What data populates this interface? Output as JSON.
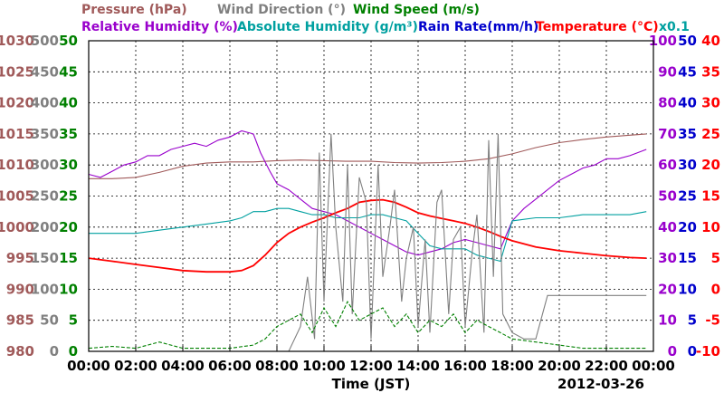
{
  "chart_data": {
    "type": "line",
    "date": "2012-03-26",
    "xlabel": "Time (JST)",
    "x_ticks": [
      "00:00",
      "02:00",
      "04:00",
      "06:00",
      "08:00",
      "10:00",
      "12:00",
      "14:00",
      "16:00",
      "18:00",
      "20:00",
      "22:00",
      "00:00"
    ],
    "x_range_hours": [
      0,
      24
    ],
    "grid": true,
    "legend_row1": [
      {
        "label": "Pressure (hPa)",
        "color": "#a05a5a"
      },
      {
        "label": "Wind Direction (°)",
        "color": "#808080"
      },
      {
        "label": "Wind Speed (m/s)",
        "color": "#008000"
      }
    ],
    "legend_row2": [
      {
        "label": "Relative Humidity (%)",
        "color": "#9900cc"
      },
      {
        "label": "Absolute Humidity (g/m³)",
        "color": "#00a0a0"
      },
      {
        "label": "Rain Rate(mm/h)",
        "color": "#0000cc"
      },
      {
        "label": "Temperature (°C)",
        "color": "#ff0000"
      },
      {
        "label": "x0.1",
        "color": "#00a0a0"
      }
    ],
    "axes": {
      "pressure": {
        "color": "#a05a5a",
        "range": [
          980,
          1030
        ],
        "ticks": [
          "1030",
          "1025",
          "1020",
          "1015",
          "1010",
          "1005",
          "1000",
          "995",
          "990",
          "985",
          "980"
        ]
      },
      "wind_direction": {
        "color": "#808080",
        "range": [
          0,
          500
        ],
        "ticks": [
          "500",
          "450",
          "400",
          "350",
          "300",
          "250",
          "200",
          "150",
          "100",
          "50",
          "0"
        ]
      },
      "wind_speed": {
        "color": "#008000",
        "range": [
          0,
          50
        ],
        "ticks": [
          "50",
          "45",
          "40",
          "35",
          "30",
          "25",
          "20",
          "15",
          "10",
          "5",
          "0"
        ]
      },
      "humidity": {
        "color": "#9900cc",
        "range": [
          0,
          100
        ],
        "ticks": [
          "100",
          "90",
          "80",
          "70",
          "60",
          "50",
          "40",
          "30",
          "20",
          "10",
          "0"
        ]
      },
      "rain_rate": {
        "color": "#0000cc",
        "range": [
          0,
          50
        ],
        "ticks": [
          "50",
          "45",
          "40",
          "35",
          "30",
          "25",
          "20",
          "15",
          "10",
          "5",
          "0"
        ]
      },
      "temperature": {
        "color": "#ff0000",
        "range": [
          -10,
          40
        ],
        "ticks": [
          "40",
          "35",
          "30",
          "25",
          "20",
          "15",
          "10",
          "5",
          "0",
          "-5",
          "-10"
        ]
      }
    },
    "series": [
      {
        "name": "Pressure (hPa)",
        "color": "#a05a5a",
        "axis": "pressure",
        "x": [
          0,
          1,
          2,
          3,
          4,
          5,
          6,
          7,
          8,
          9,
          10,
          11,
          12,
          13,
          14,
          15,
          16,
          17,
          18,
          19,
          20,
          21,
          22,
          23,
          23.7
        ],
        "y": [
          1007.8,
          1007.8,
          1008.0,
          1008.8,
          1009.8,
          1010.3,
          1010.5,
          1010.5,
          1010.7,
          1010.8,
          1010.7,
          1010.6,
          1010.6,
          1010.4,
          1010.3,
          1010.4,
          1010.6,
          1011.0,
          1011.8,
          1012.8,
          1013.6,
          1014.1,
          1014.5,
          1014.8,
          1015.0
        ]
      },
      {
        "name": "Relative Humidity (%)",
        "color": "#9900cc",
        "axis": "humidity",
        "x": [
          0,
          0.5,
          1,
          1.5,
          2,
          2.5,
          3,
          3.5,
          4,
          4.5,
          5,
          5.5,
          6,
          6.5,
          7,
          7.3,
          7.7,
          8,
          8.5,
          9,
          9.5,
          10,
          10.5,
          11,
          11.5,
          12,
          12.5,
          13,
          13.5,
          14,
          14.5,
          15,
          15.5,
          16,
          16.5,
          17,
          17.5,
          18,
          18.5,
          19,
          19.5,
          20,
          20.5,
          21,
          21.5,
          22,
          22.5,
          23,
          23.7
        ],
        "y": [
          57,
          56,
          58,
          60,
          61,
          63,
          63,
          65,
          66,
          67,
          66,
          68,
          69,
          71,
          70,
          64,
          58,
          54,
          52,
          49,
          46,
          45,
          44,
          42,
          40,
          38,
          36,
          34,
          32,
          31,
          32,
          33,
          35,
          36,
          35,
          34,
          33,
          42,
          46,
          49,
          52,
          55,
          57,
          59,
          60,
          62,
          62,
          63,
          65
        ]
      },
      {
        "name": "Absolute Humidity (g/m³)",
        "color": "#00a0a0",
        "axis": "humidity",
        "x": [
          0,
          1,
          2,
          3,
          4,
          5,
          6,
          6.5,
          7,
          7.5,
          8,
          8.5,
          9,
          9.5,
          10,
          10.5,
          11,
          11.5,
          12,
          12.5,
          13,
          13.5,
          14,
          14.5,
          15,
          15.5,
          16,
          16.5,
          17,
          17.5,
          18,
          19,
          20,
          21,
          22,
          23,
          23.7
        ],
        "y": [
          38,
          38,
          38,
          39,
          40,
          41,
          42,
          43,
          45,
          45,
          46,
          46,
          45,
          44,
          44,
          43,
          43,
          43,
          44,
          44,
          43,
          42,
          38,
          34,
          33,
          33,
          33,
          31,
          30,
          29,
          42,
          43,
          43,
          44,
          44,
          44,
          45
        ]
      },
      {
        "name": "Temperature (°C)",
        "color": "#ff0000",
        "axis": "temperature",
        "x": [
          0,
          1,
          2,
          3,
          4,
          5,
          6,
          6.5,
          7,
          7.5,
          8,
          8.5,
          9,
          9.5,
          10,
          10.5,
          11,
          11.5,
          12,
          12.5,
          13,
          13.5,
          14,
          14.5,
          15,
          15.5,
          16,
          16.5,
          17,
          17.5,
          18,
          19,
          20,
          21,
          22,
          23,
          23.7
        ],
        "y": [
          5,
          4.5,
          4,
          3.5,
          3,
          2.8,
          2.8,
          3,
          3.8,
          5.5,
          7.5,
          9,
          10,
          10.8,
          11.5,
          12.3,
          13,
          14,
          14.3,
          14.4,
          14.0,
          13.2,
          12.3,
          11.8,
          11.4,
          11.0,
          10.6,
          10.0,
          9.3,
          8.5,
          7.8,
          6.8,
          6.2,
          5.8,
          5.4,
          5.1,
          5.0
        ]
      },
      {
        "name": "Wind Direction (°)",
        "color": "#808080",
        "axis": "wind_direction",
        "x": [
          8.5,
          9,
          9.3,
          9.6,
          9.8,
          10,
          10.3,
          10.5,
          10.8,
          11,
          11.2,
          11.5,
          11.8,
          12,
          12.3,
          12.5,
          12.8,
          13,
          13.3,
          13.5,
          13.8,
          14,
          14.3,
          14.5,
          14.8,
          15,
          15.3,
          15.5,
          15.8,
          16,
          16.3,
          16.5,
          16.8,
          17,
          17.2,
          17.4,
          17.6,
          18,
          18.5,
          19,
          19.5,
          20,
          21,
          22,
          23,
          23.7
        ],
        "y": [
          0,
          40,
          120,
          20,
          320,
          80,
          350,
          200,
          80,
          300,
          60,
          280,
          240,
          20,
          300,
          120,
          200,
          260,
          80,
          150,
          200,
          40,
          180,
          30,
          240,
          260,
          60,
          180,
          200,
          40,
          160,
          220,
          30,
          340,
          120,
          350,
          60,
          30,
          20,
          20,
          90,
          90,
          90,
          90,
          90,
          90
        ]
      },
      {
        "name": "Wind Speed (m/s)",
        "color": "#008000",
        "axis": "wind_speed",
        "x": [
          0,
          1,
          2,
          3,
          4,
          5,
          6,
          7,
          7.5,
          8,
          8.5,
          9,
          9.5,
          10,
          10.5,
          11,
          11.5,
          12,
          12.5,
          13,
          13.5,
          14,
          14.5,
          15,
          15.5,
          16,
          16.5,
          17,
          17.5,
          18,
          19,
          20,
          21,
          22,
          23,
          23.7
        ],
        "y": [
          0.5,
          0.8,
          0.5,
          1.5,
          0.5,
          0.5,
          0.5,
          1,
          2,
          4,
          5,
          6,
          3,
          7,
          4,
          8,
          5,
          6,
          7,
          4,
          6,
          3,
          5,
          4,
          6,
          3,
          5,
          4,
          3,
          2,
          1.5,
          1,
          0.5,
          0.5,
          0.5,
          0.5
        ]
      },
      {
        "name": "Rain Rate(mm/h)",
        "color": "#0000cc",
        "axis": "rain_rate",
        "x": [
          0,
          24
        ],
        "y": [
          0,
          0
        ]
      }
    ]
  }
}
